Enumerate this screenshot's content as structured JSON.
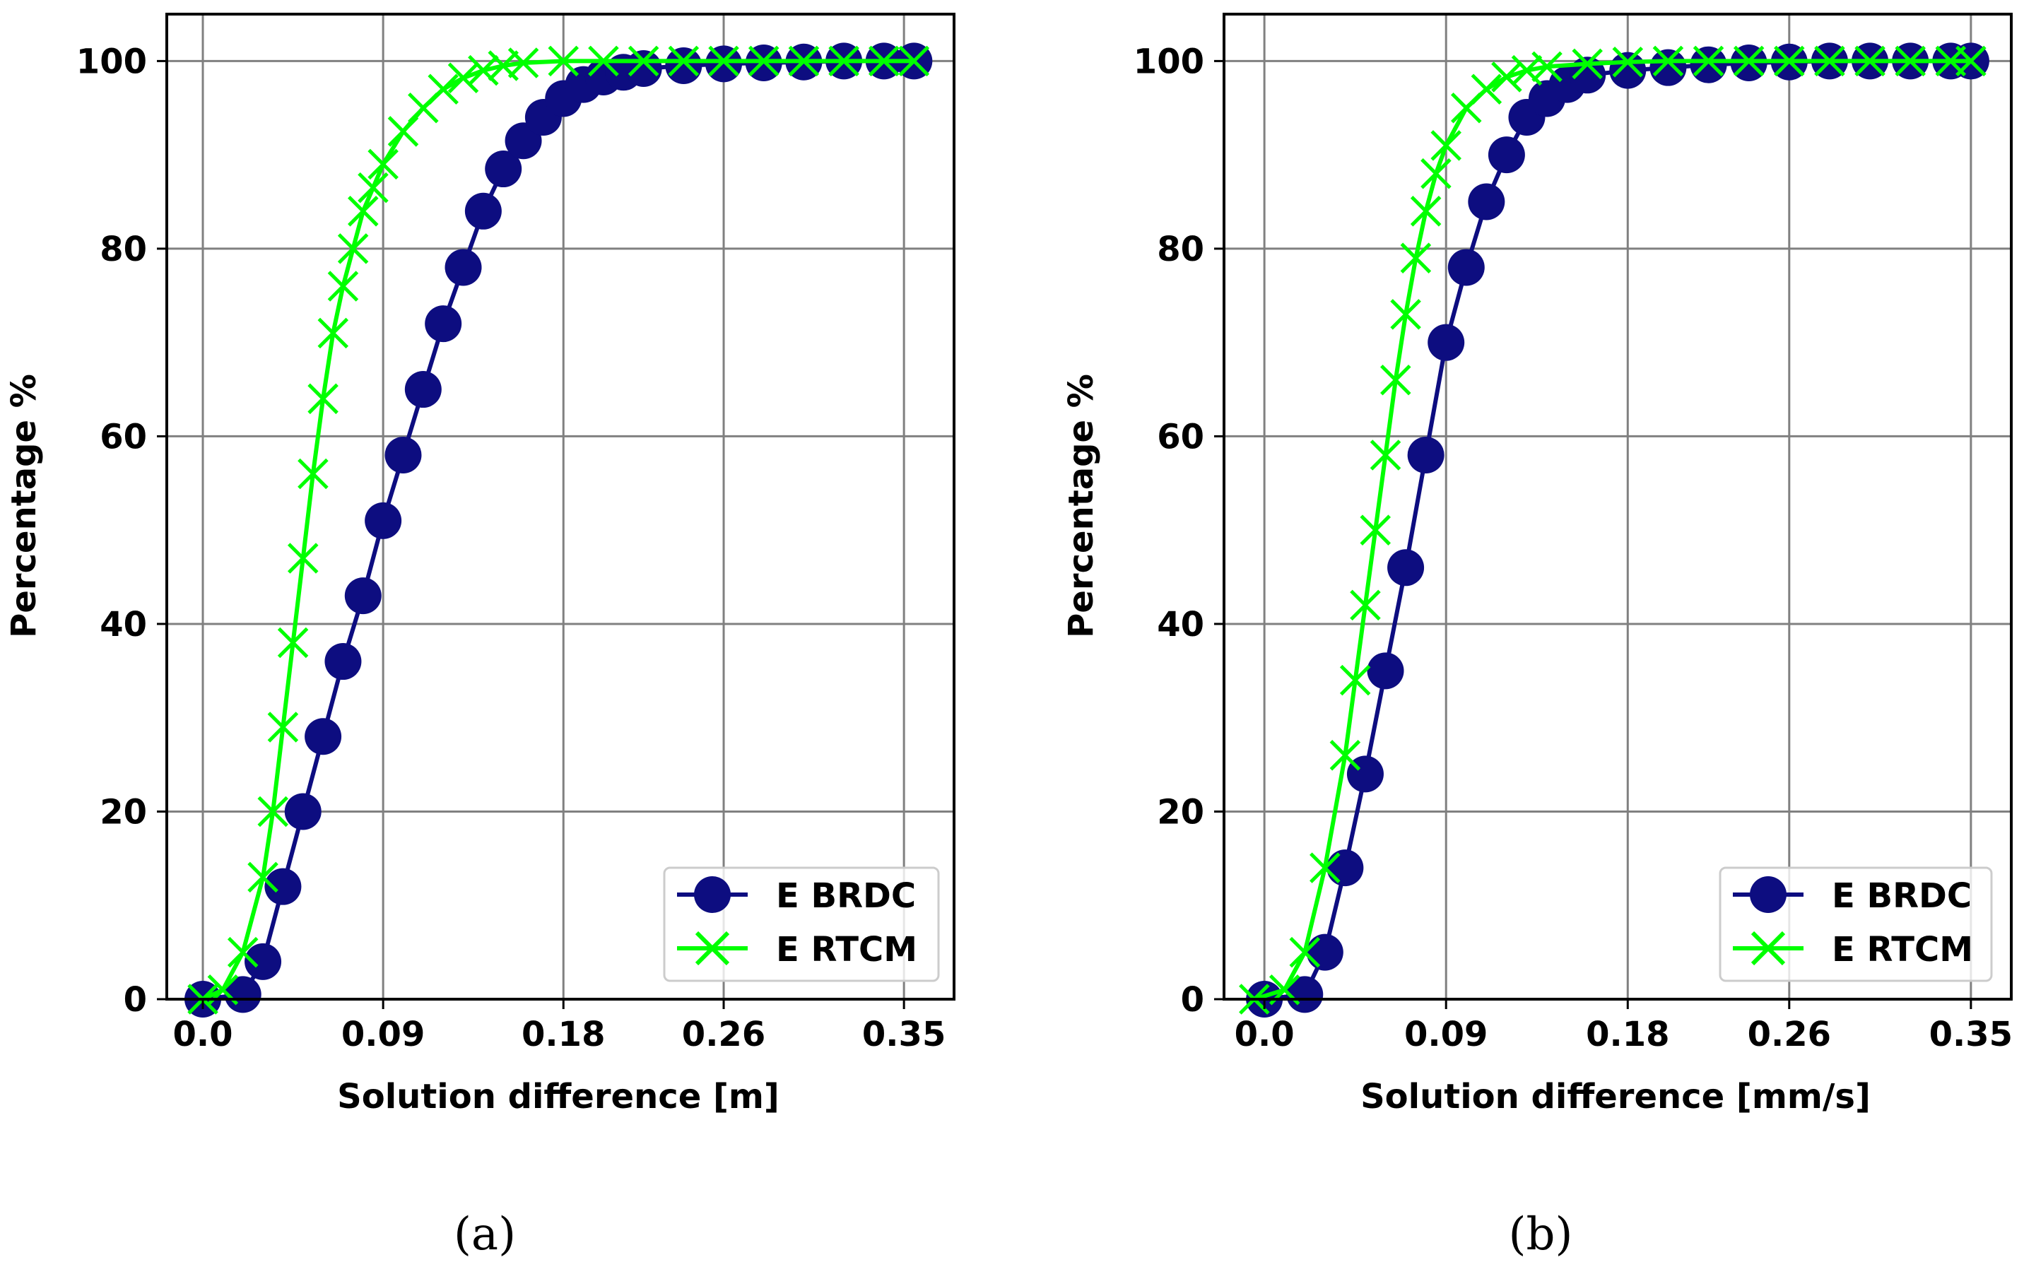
{
  "colors": {
    "brdc": "#0d0d80",
    "rtcm": "#00ff00",
    "grid": "#808080",
    "axes": "#000000",
    "legend_border": "#cccccc"
  },
  "chart_data": [
    {
      "type": "line",
      "panel_caption": "(a)",
      "xlabel": "Solution difference [m]",
      "ylabel": "Percentage %",
      "xlim": [
        -0.018,
        0.375
      ],
      "ylim": [
        0,
        105
      ],
      "xticks": [
        0.0,
        0.09,
        0.18,
        0.26,
        0.35
      ],
      "xtick_labels": [
        "0.0",
        "0.09",
        "0.18",
        "0.26",
        "0.35"
      ],
      "yticks": [
        0,
        20,
        40,
        60,
        80,
        100
      ],
      "ytick_labels": [
        "0",
        "20",
        "40",
        "60",
        "80",
        "100"
      ],
      "grid": true,
      "legend": "lower-right",
      "series": [
        {
          "name": "E BRDC",
          "marker": "circle",
          "x": [
            0.0,
            0.02,
            0.03,
            0.04,
            0.05,
            0.06,
            0.07,
            0.08,
            0.09,
            0.1,
            0.11,
            0.12,
            0.13,
            0.14,
            0.15,
            0.16,
            0.17,
            0.18,
            0.19,
            0.2,
            0.21,
            0.22,
            0.24,
            0.26,
            0.28,
            0.3,
            0.32,
            0.34,
            0.355
          ],
          "y": [
            0,
            0.5,
            4,
            12,
            20,
            28,
            36,
            43,
            51,
            58,
            65,
            72,
            78,
            84,
            88.5,
            91.5,
            94,
            96,
            97.5,
            98.3,
            98.8,
            99.2,
            99.5,
            99.7,
            99.8,
            99.9,
            100,
            100,
            100
          ]
        },
        {
          "name": "E RTCM",
          "marker": "x",
          "x": [
            0.0,
            0.01,
            0.02,
            0.03,
            0.035,
            0.04,
            0.045,
            0.05,
            0.055,
            0.06,
            0.065,
            0.07,
            0.075,
            0.08,
            0.085,
            0.09,
            0.1,
            0.11,
            0.12,
            0.13,
            0.14,
            0.15,
            0.16,
            0.18,
            0.2,
            0.22,
            0.24,
            0.26,
            0.28,
            0.3,
            0.32,
            0.34,
            0.355
          ],
          "y": [
            0,
            1,
            5,
            13,
            20,
            29,
            38,
            47,
            56,
            64,
            71,
            76,
            80,
            84,
            86.5,
            89,
            92.5,
            95,
            97,
            98.2,
            99,
            99.5,
            99.8,
            100,
            100,
            100,
            100,
            100,
            100,
            100,
            100,
            100,
            100
          ]
        }
      ]
    },
    {
      "type": "line",
      "panel_caption": "(b)",
      "xlabel": "Solution difference [mm/s]",
      "ylabel": "Percentage %",
      "xlim": [
        -0.02,
        0.37
      ],
      "ylim": [
        0,
        105
      ],
      "xticks": [
        0.0,
        0.09,
        0.18,
        0.26,
        0.35
      ],
      "xtick_labels": [
        "0.0",
        "0.09",
        "0.18",
        "0.26",
        "0.35"
      ],
      "yticks": [
        0,
        20,
        40,
        60,
        80,
        100
      ],
      "ytick_labels": [
        "0",
        "20",
        "40",
        "60",
        "80",
        "100"
      ],
      "grid": true,
      "legend": "lower-right",
      "series": [
        {
          "name": "E BRDC",
          "marker": "circle",
          "x": [
            0.0,
            0.02,
            0.03,
            0.04,
            0.05,
            0.06,
            0.07,
            0.08,
            0.09,
            0.1,
            0.11,
            0.12,
            0.13,
            0.14,
            0.15,
            0.16,
            0.18,
            0.2,
            0.22,
            0.24,
            0.26,
            0.28,
            0.3,
            0.32,
            0.34,
            0.35
          ],
          "y": [
            0,
            0.5,
            5,
            14,
            24,
            35,
            46,
            58,
            70,
            78,
            85,
            90,
            94,
            96,
            97.5,
            98.5,
            99,
            99.3,
            99.6,
            99.8,
            99.9,
            100,
            100,
            100,
            100,
            100
          ]
        },
        {
          "name": "E RTCM",
          "marker": "x",
          "x": [
            -0.005,
            0.01,
            0.02,
            0.03,
            0.04,
            0.045,
            0.05,
            0.055,
            0.06,
            0.065,
            0.07,
            0.075,
            0.08,
            0.085,
            0.09,
            0.1,
            0.11,
            0.12,
            0.13,
            0.14,
            0.16,
            0.18,
            0.2,
            0.22,
            0.24,
            0.26,
            0.28,
            0.3,
            0.32,
            0.34,
            0.35
          ],
          "y": [
            0,
            1,
            5,
            14,
            26,
            34,
            42,
            50,
            58,
            66,
            73,
            79,
            84,
            88,
            91,
            95,
            97,
            98.3,
            99,
            99.4,
            99.7,
            99.9,
            100,
            100,
            100,
            100,
            100,
            100,
            100,
            100,
            100
          ]
        }
      ]
    }
  ]
}
